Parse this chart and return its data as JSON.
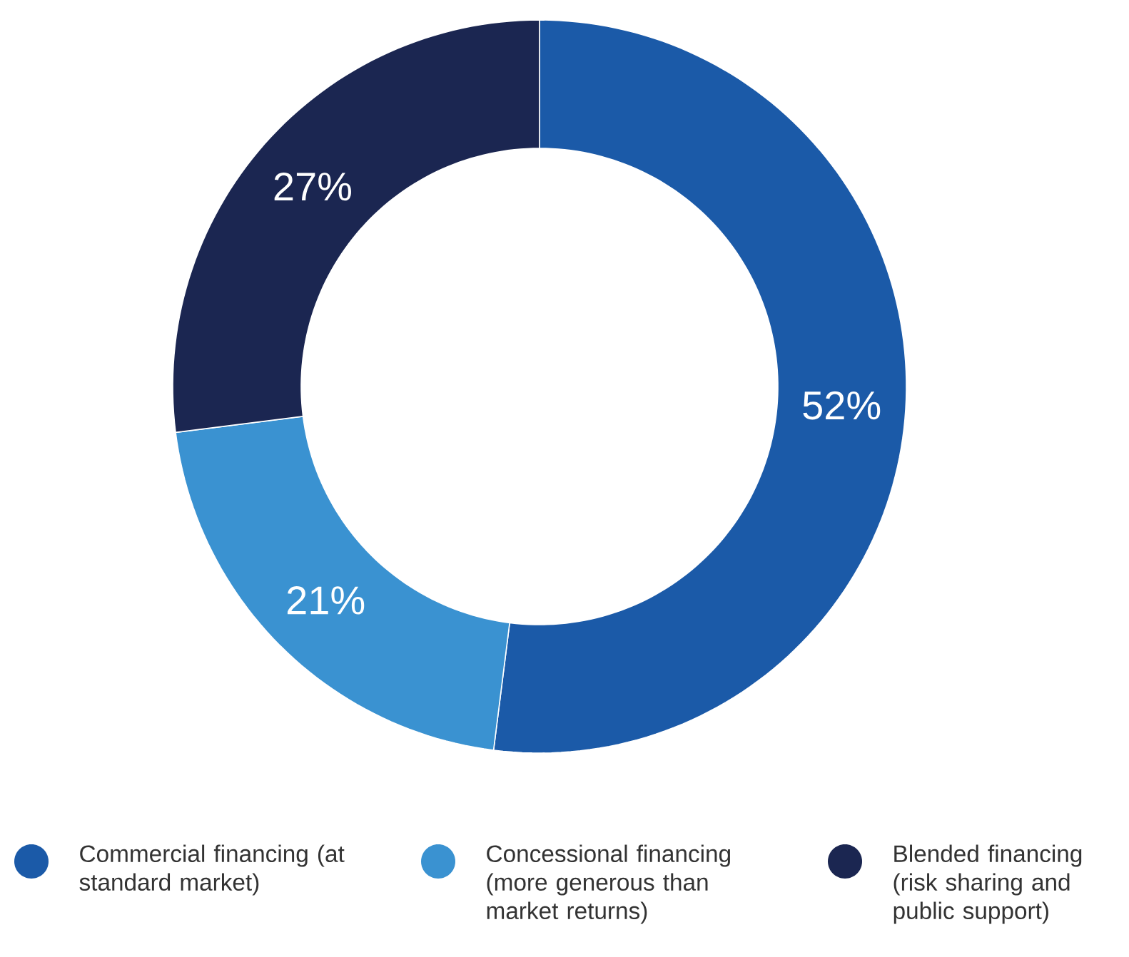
{
  "chart_data": {
    "type": "donut",
    "categories": [
      "Commercial financing (at standard market)",
      "Concessional financing (more generous than market returns)",
      "Blended financing (risk sharing and public support)"
    ],
    "values": [
      52,
      21,
      27
    ],
    "colors": [
      "#1b5aa8",
      "#3a92d1",
      "#1b2651"
    ],
    "value_labels": [
      "52%",
      "21%",
      "27%"
    ],
    "legend": "bottom"
  }
}
